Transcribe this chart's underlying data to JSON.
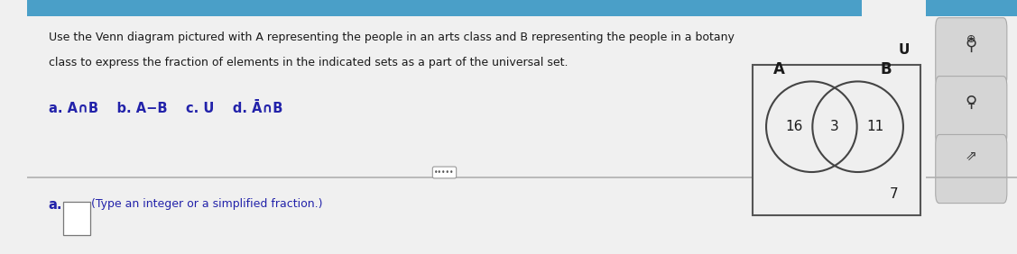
{
  "bg_color": "#e8e8e8",
  "panel_bg": "#e8e8e8",
  "main_bg": "#f0f0f0",
  "white": "#ffffff",
  "top_bar_color": "#4a9fc8",
  "title_text_line1": "Use the Venn diagram pictured with A representing the people in an arts class and B representing the people in a botany",
  "title_text_line2": "class to express the fraction of elements in the indicated sets as a part of the universal set.",
  "title_fontsize": 9.0,
  "label_fontsize": 10.5,
  "accent_color": "#2222aa",
  "text_color": "#1a1a1a",
  "line_color": "#b0b0b0",
  "venn_left_num": "16",
  "venn_center_num": "3",
  "venn_right_num": "11",
  "venn_outside_num": "7",
  "venn_A_label": "A",
  "venn_B_label": "B",
  "venn_U_label": "U",
  "answer_hint": "(Type an integer or a simplified fraction.)"
}
